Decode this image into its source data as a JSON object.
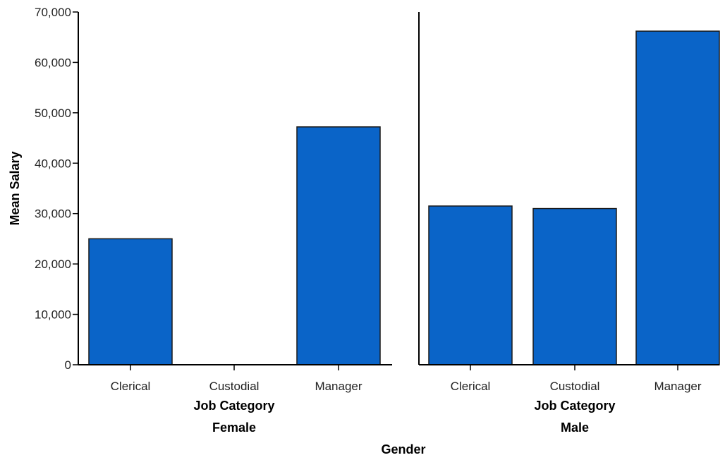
{
  "chart_data": {
    "type": "bar",
    "ylabel": "Mean Salary",
    "xlabel": "Job Category",
    "outer_xlabel": "Gender",
    "categories": [
      "Clerical",
      "Custodial",
      "Manager"
    ],
    "yticks": [
      0,
      10000,
      20000,
      30000,
      40000,
      50000,
      60000,
      70000
    ],
    "ytick_labels": [
      "0",
      "10,000",
      "20,000",
      "30,000",
      "40,000",
      "50,000",
      "60,000",
      "70,000"
    ],
    "ylim": [
      0,
      70000
    ],
    "bar_color": "#0a64c8",
    "panels": [
      {
        "name": "Female",
        "values": [
          25000,
          null,
          47200
        ]
      },
      {
        "name": "Male",
        "values": [
          31500,
          31000,
          66200
        ]
      }
    ]
  }
}
